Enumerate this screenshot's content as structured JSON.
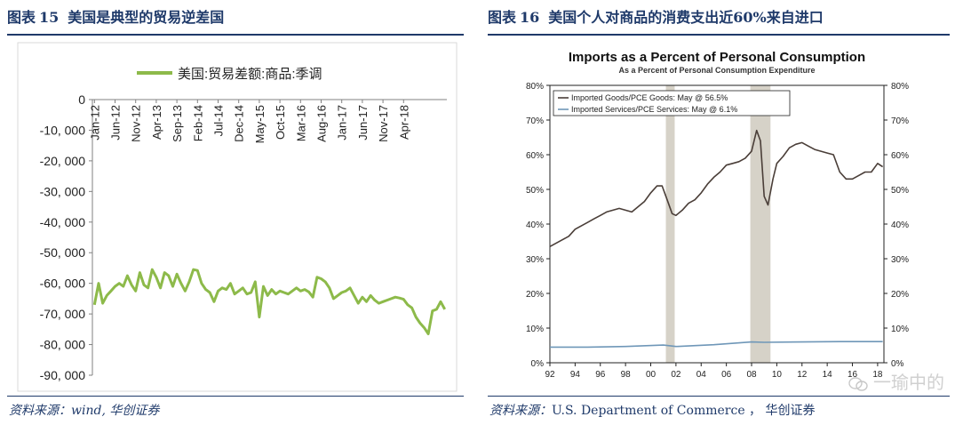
{
  "left_figure": {
    "label": "图表",
    "number": "15",
    "title": "美国是典型的贸易逆差国",
    "source_label": "资料来源：",
    "source_text": "wind, 华创证券"
  },
  "right_figure": {
    "label": "图表",
    "number": "16",
    "title": "美国个人对商品的消费支出近60%来自进口",
    "source_label": "资料来源：",
    "source_text": "U.S. Department of Commerce ， 华创证券"
  },
  "watermark": {
    "text": "一瑜中的"
  },
  "colors": {
    "left_series": "#8dba4a",
    "goods": "#4a3e38",
    "services": "#6f97b8",
    "recession": "#d6d2c8",
    "header": "#1f3a6a"
  },
  "chart_data": [
    {
      "type": "line",
      "title": "",
      "xlabel": "",
      "ylabel": "",
      "legend_position": "top",
      "grid": false,
      "ylim": [
        -90000,
        0
      ],
      "yticks": [
        0,
        -10000,
        -20000,
        -30000,
        -40000,
        -50000,
        -60000,
        -70000,
        -80000,
        -90000
      ],
      "ytick_labels": [
        "0",
        "-10, 000",
        "-20, 000",
        "-30, 000",
        "-40, 000",
        "-50, 000",
        "-60, 000",
        "-70, 000",
        "-80, 000",
        "-90, 000"
      ],
      "xtick_labels": [
        "Jan-12",
        "Jun-12",
        "Nov-12",
        "Apr-13",
        "Sep-13",
        "Feb-14",
        "Jul-14",
        "Dec-14",
        "May-15",
        "Oct-15",
        "Mar-16",
        "Aug-16",
        "Jan-17",
        "Jun-17",
        "Nov-17",
        "Apr-18"
      ],
      "xtick_index": [
        0,
        5,
        10,
        15,
        20,
        25,
        30,
        35,
        40,
        45,
        50,
        55,
        60,
        65,
        70,
        75
      ],
      "series": [
        {
          "name": "美国:贸易差额:商品:季调",
          "values": [
            -67000,
            -60000,
            -66500,
            -64000,
            -62500,
            -61000,
            -60000,
            -61000,
            -57500,
            -60500,
            -62500,
            -56500,
            -60500,
            -61500,
            -55500,
            -58000,
            -61500,
            -56500,
            -57500,
            -61000,
            -57000,
            -60000,
            -62500,
            -59500,
            -55500,
            -55800,
            -60000,
            -62000,
            -63000,
            -66000,
            -62500,
            -61500,
            -62000,
            -60000,
            -63500,
            -62500,
            -61500,
            -63500,
            -63000,
            -59500,
            -71000,
            -61000,
            -64000,
            -62000,
            -63500,
            -62500,
            -63000,
            -63500,
            -62500,
            -61500,
            -62500,
            -62000,
            -62800,
            -64500,
            -58000,
            -58500,
            -59500,
            -61500,
            -65000,
            -64000,
            -63000,
            -62500,
            -61500,
            -64000,
            -66500,
            -64500,
            -66000,
            -64000,
            -65500,
            -66500,
            -66000,
            -65500,
            -65000,
            -64500,
            -64800,
            -65200,
            -67000,
            -68000,
            -71000,
            -73000,
            -74500,
            -76500,
            -69000,
            -68500,
            -66000,
            -68500
          ]
        }
      ]
    },
    {
      "type": "line",
      "title": "Imports as a Percent of Personal Consumption",
      "subtitle": "As a Percent of Personal Consumption Expenditure",
      "xlabel": "",
      "ylabel": "",
      "legend_position": "top-left",
      "grid": false,
      "xlim": [
        1992,
        2018.5
      ],
      "ylim": [
        0,
        80
      ],
      "yticks": [
        0,
        10,
        20,
        30,
        40,
        50,
        60,
        70,
        80
      ],
      "ytick_labels_left": [
        "0%",
        "10%",
        "20%",
        "30%",
        "40%",
        "50%",
        "60%",
        "70%",
        "80%"
      ],
      "ytick_labels_right": [
        "0%",
        "10%",
        "20%",
        "30%",
        "40%",
        "50%",
        "60%",
        "70%",
        "80%"
      ],
      "xtick_years": [
        1992,
        1994,
        1996,
        1998,
        2000,
        2002,
        2004,
        2006,
        2008,
        2010,
        2012,
        2014,
        2016,
        2018
      ],
      "xtick_labels": [
        "92",
        "94",
        "96",
        "98",
        "00",
        "02",
        "04",
        "06",
        "08",
        "10",
        "12",
        "14",
        "16",
        "18"
      ],
      "recessions": [
        [
          2001.2,
          2001.9
        ],
        [
          2007.9,
          2009.5
        ]
      ],
      "series": [
        {
          "name": "Imported Goods/PCE Goods: May @ 56.5%",
          "x": [
            1992,
            1992.5,
            1993,
            1993.5,
            1994,
            1994.5,
            1995,
            1995.5,
            1996,
            1996.5,
            1997,
            1997.5,
            1998,
            1998.5,
            1999,
            1999.5,
            2000,
            2000.5,
            2000.9,
            2001.3,
            2001.7,
            2002,
            2002.5,
            2003,
            2003.5,
            2004,
            2004.5,
            2005,
            2005.5,
            2006,
            2006.5,
            2007,
            2007.5,
            2008,
            2008.4,
            2008.7,
            2009,
            2009.3,
            2009.7,
            2010,
            2010.5,
            2011,
            2011.5,
            2012,
            2012.5,
            2013,
            2013.5,
            2014,
            2014.5,
            2015,
            2015.5,
            2016,
            2016.5,
            2017,
            2017.5,
            2018,
            2018.4
          ],
          "values": [
            33.5,
            34.5,
            35.5,
            36.5,
            38.5,
            39.5,
            40.5,
            41.5,
            42.5,
            43.5,
            44,
            44.5,
            44,
            43.5,
            45,
            46.5,
            49,
            51,
            51,
            47,
            43,
            42.5,
            44,
            46,
            47,
            49,
            51.5,
            53.5,
            55,
            57,
            57.5,
            58,
            59,
            61,
            67,
            64,
            48,
            45.5,
            53,
            57.5,
            59.5,
            62,
            63,
            63.5,
            62.5,
            61.5,
            61,
            60.5,
            60,
            55,
            53,
            53,
            54,
            55,
            55,
            57.5,
            56.5
          ]
        },
        {
          "name": "Imported Services/PCE Services: May @ 6.1%",
          "x": [
            1992,
            1995,
            1998,
            2001,
            2002,
            2005,
            2008,
            2009,
            2012,
            2015,
            2018.4
          ],
          "values": [
            4.5,
            4.5,
            4.7,
            5.1,
            4.7,
            5.2,
            6.0,
            5.9,
            6.0,
            6.1,
            6.1
          ]
        }
      ]
    }
  ]
}
